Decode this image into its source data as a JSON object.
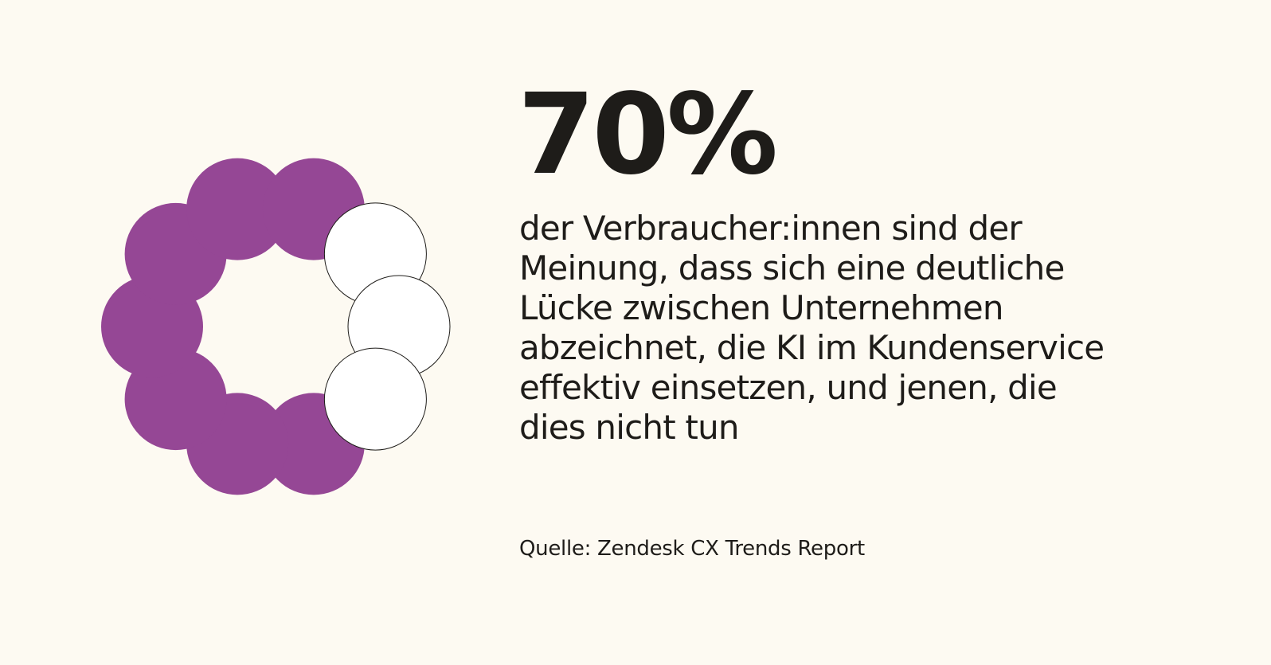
{
  "stat": {
    "value_text": "70%",
    "value_percent": 70,
    "description": "der Verbraucher:innen sind der Meinung, dass sich eine deutliche Lücke zwischen Unternehmen abzeichnet, die KI im Kundenservice effektiv einsetzen, und jenen, die dies nicht tun"
  },
  "source": "Quelle: Zendesk CX Trends Report",
  "graphic": {
    "type": "dot-ring",
    "total_dots": 10,
    "filled_dots": 7,
    "filled_color": "#954795",
    "empty_color": "#ffffff",
    "outline_color": "#1e1c19"
  },
  "colors": {
    "background": "#fdfaf2",
    "text": "#1e1c19"
  }
}
